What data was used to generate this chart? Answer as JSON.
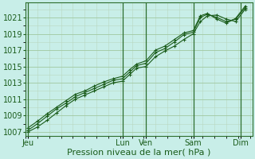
{
  "bg_color": "#c8eee8",
  "grid_major_color": "#a0c8a0",
  "grid_minor_color": "#b8d8c0",
  "line_color": "#1a5c1a",
  "marker_color": "#1a5c1a",
  "xlabel": "Pression niveau de la mer( hPa )",
  "xlabel_fontsize": 8,
  "tick_fontsize": 7,
  "ylim": [
    1006.5,
    1022.8
  ],
  "yticks": [
    1007,
    1009,
    1011,
    1013,
    1015,
    1017,
    1019,
    1021
  ],
  "day_labels": [
    "Jeu",
    "Lun",
    "Ven",
    "Sam",
    "Dim"
  ],
  "day_positions": [
    0,
    40,
    50,
    70,
    90
  ],
  "vline_positions": [
    0,
    40,
    50,
    70,
    90
  ],
  "xlim": [
    -1,
    95
  ],
  "series1_x": [
    0,
    4,
    8,
    12,
    16,
    20,
    24,
    28,
    32,
    36,
    40,
    43,
    46,
    50,
    54,
    58,
    62,
    66,
    70,
    73,
    76,
    80,
    84,
    88,
    92
  ],
  "series1_y": [
    1007.0,
    1007.6,
    1008.4,
    1009.3,
    1010.2,
    1011.0,
    1011.5,
    1012.0,
    1012.5,
    1013.0,
    1013.2,
    1014.0,
    1014.8,
    1015.0,
    1016.2,
    1016.9,
    1017.5,
    1018.3,
    1019.0,
    1020.5,
    1021.2,
    1021.3,
    1020.8,
    1020.5,
    1022.0
  ],
  "series2_x": [
    0,
    4,
    8,
    12,
    16,
    20,
    24,
    28,
    32,
    36,
    40,
    43,
    46,
    50,
    54,
    58,
    62,
    66,
    70,
    73,
    76,
    80,
    84,
    88,
    92
  ],
  "series2_y": [
    1007.2,
    1008.0,
    1008.9,
    1009.8,
    1010.5,
    1011.3,
    1011.8,
    1012.3,
    1012.8,
    1013.3,
    1013.5,
    1014.3,
    1015.1,
    1015.4,
    1016.7,
    1017.2,
    1018.0,
    1018.9,
    1019.2,
    1021.0,
    1021.4,
    1021.0,
    1020.5,
    1020.8,
    1022.2
  ],
  "series3_x": [
    0,
    4,
    8,
    12,
    16,
    20,
    24,
    28,
    32,
    36,
    40,
    43,
    46,
    50,
    54,
    58,
    62,
    66,
    70,
    73,
    76,
    80,
    84,
    88,
    92
  ],
  "series3_y": [
    1007.5,
    1008.3,
    1009.2,
    1010.0,
    1010.8,
    1011.6,
    1012.0,
    1012.6,
    1013.1,
    1013.5,
    1013.8,
    1014.6,
    1015.3,
    1015.7,
    1017.0,
    1017.5,
    1018.3,
    1019.1,
    1019.4,
    1021.2,
    1021.5,
    1020.8,
    1020.3,
    1020.9,
    1022.4
  ]
}
